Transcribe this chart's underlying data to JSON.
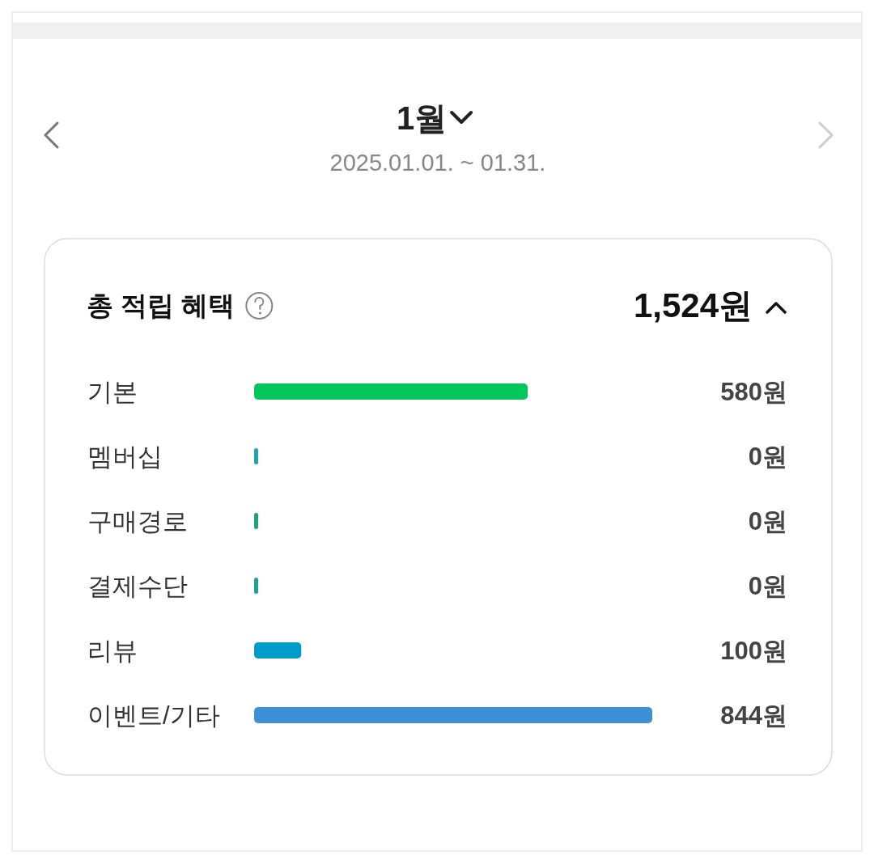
{
  "chart_data": {
    "type": "bar",
    "orientation": "horizontal",
    "title": "1월",
    "subtitle": "2025.01.01. ~ 01.31.",
    "annotations": [
      "총 적립 혜택",
      "1,524원"
    ],
    "categories": [
      "기본",
      "멤버십",
      "구매경로",
      "결제수단",
      "리뷰",
      "이벤트/기타"
    ],
    "values": [
      580,
      0,
      0,
      0,
      100,
      844
    ],
    "value_labels": [
      "580원",
      "0원",
      "0원",
      "0원",
      "100원",
      "844원"
    ],
    "colors": [
      "#03c75a",
      "#1fa3b5",
      "#1fa37a",
      "#1fa38f",
      "#009bc8",
      "#3f8fd4"
    ]
  }
}
